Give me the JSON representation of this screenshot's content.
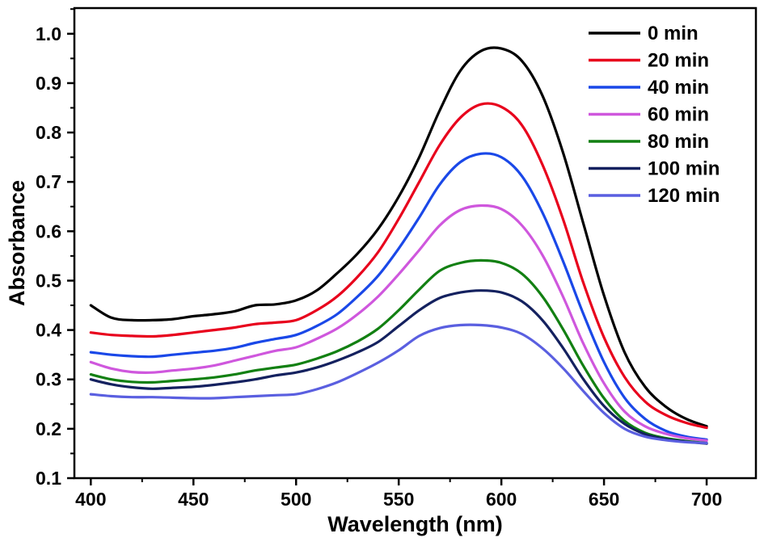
{
  "figure": {
    "background": "#ffffff",
    "frame_color": "#000000"
  },
  "chart_data": {
    "type": "line",
    "title": "",
    "xlabel": "Wavelength (nm)",
    "ylabel": "Absorbance",
    "xlim": [
      392,
      724
    ],
    "ylim": [
      0.1,
      1.052
    ],
    "x_ticks": [
      400,
      450,
      500,
      550,
      600,
      650,
      700
    ],
    "x_minor_step": 25,
    "y_ticks": [
      0.1,
      0.2,
      0.3,
      0.4,
      0.5,
      0.6,
      0.7,
      0.8,
      0.9,
      1.0
    ],
    "y_minor_step": 0.05,
    "grid": false,
    "legend_position": "top-right-inside",
    "x": [
      400,
      410,
      420,
      430,
      440,
      450,
      460,
      470,
      480,
      490,
      500,
      510,
      520,
      530,
      540,
      550,
      560,
      570,
      580,
      590,
      600,
      610,
      620,
      630,
      640,
      650,
      660,
      670,
      680,
      690,
      700
    ],
    "series": [
      {
        "name": "0 min",
        "color": "#000000",
        "values": [
          0.45,
          0.425,
          0.42,
          0.42,
          0.422,
          0.428,
          0.432,
          0.438,
          0.45,
          0.452,
          0.46,
          0.48,
          0.515,
          0.555,
          0.605,
          0.67,
          0.75,
          0.845,
          0.925,
          0.965,
          0.97,
          0.945,
          0.875,
          0.76,
          0.615,
          0.47,
          0.355,
          0.285,
          0.245,
          0.22,
          0.205
        ]
      },
      {
        "name": "20 min",
        "color": "#e8001c",
        "values": [
          0.395,
          0.39,
          0.388,
          0.387,
          0.39,
          0.395,
          0.4,
          0.405,
          0.412,
          0.415,
          0.42,
          0.44,
          0.468,
          0.508,
          0.558,
          0.625,
          0.7,
          0.775,
          0.83,
          0.857,
          0.852,
          0.815,
          0.735,
          0.625,
          0.495,
          0.385,
          0.305,
          0.255,
          0.228,
          0.212,
          0.202
        ]
      },
      {
        "name": "40 min",
        "color": "#1a48e8",
        "values": [
          0.355,
          0.35,
          0.347,
          0.346,
          0.35,
          0.354,
          0.358,
          0.364,
          0.374,
          0.382,
          0.39,
          0.408,
          0.432,
          0.468,
          0.51,
          0.565,
          0.628,
          0.695,
          0.74,
          0.757,
          0.75,
          0.712,
          0.638,
          0.54,
          0.432,
          0.335,
          0.263,
          0.22,
          0.196,
          0.184,
          0.178
        ]
      },
      {
        "name": "60 min",
        "color": "#cf57dd",
        "values": [
          0.335,
          0.322,
          0.315,
          0.314,
          0.318,
          0.322,
          0.328,
          0.338,
          0.348,
          0.358,
          0.365,
          0.382,
          0.403,
          0.432,
          0.468,
          0.513,
          0.562,
          0.612,
          0.643,
          0.652,
          0.645,
          0.612,
          0.552,
          0.468,
          0.372,
          0.292,
          0.235,
          0.205,
          0.19,
          0.181,
          0.176
        ]
      },
      {
        "name": "80 min",
        "color": "#128012",
        "values": [
          0.31,
          0.3,
          0.295,
          0.294,
          0.297,
          0.3,
          0.304,
          0.31,
          0.318,
          0.324,
          0.33,
          0.342,
          0.357,
          0.377,
          0.403,
          0.44,
          0.482,
          0.52,
          0.536,
          0.541,
          0.536,
          0.514,
          0.468,
          0.402,
          0.327,
          0.262,
          0.216,
          0.192,
          0.181,
          0.175,
          0.171
        ]
      },
      {
        "name": "100 min",
        "color": "#14215f",
        "values": [
          0.3,
          0.29,
          0.284,
          0.281,
          0.283,
          0.285,
          0.289,
          0.294,
          0.3,
          0.308,
          0.314,
          0.324,
          0.338,
          0.355,
          0.376,
          0.408,
          0.44,
          0.465,
          0.476,
          0.48,
          0.476,
          0.458,
          0.42,
          0.364,
          0.3,
          0.246,
          0.21,
          0.189,
          0.179,
          0.174,
          0.17
        ]
      },
      {
        "name": "120 min",
        "color": "#5a5fe0",
        "values": [
          0.27,
          0.266,
          0.264,
          0.264,
          0.263,
          0.262,
          0.262,
          0.264,
          0.266,
          0.268,
          0.27,
          0.28,
          0.294,
          0.313,
          0.334,
          0.359,
          0.388,
          0.404,
          0.41,
          0.41,
          0.405,
          0.392,
          0.363,
          0.323,
          0.276,
          0.232,
          0.2,
          0.184,
          0.177,
          0.173,
          0.171
        ]
      }
    ]
  }
}
